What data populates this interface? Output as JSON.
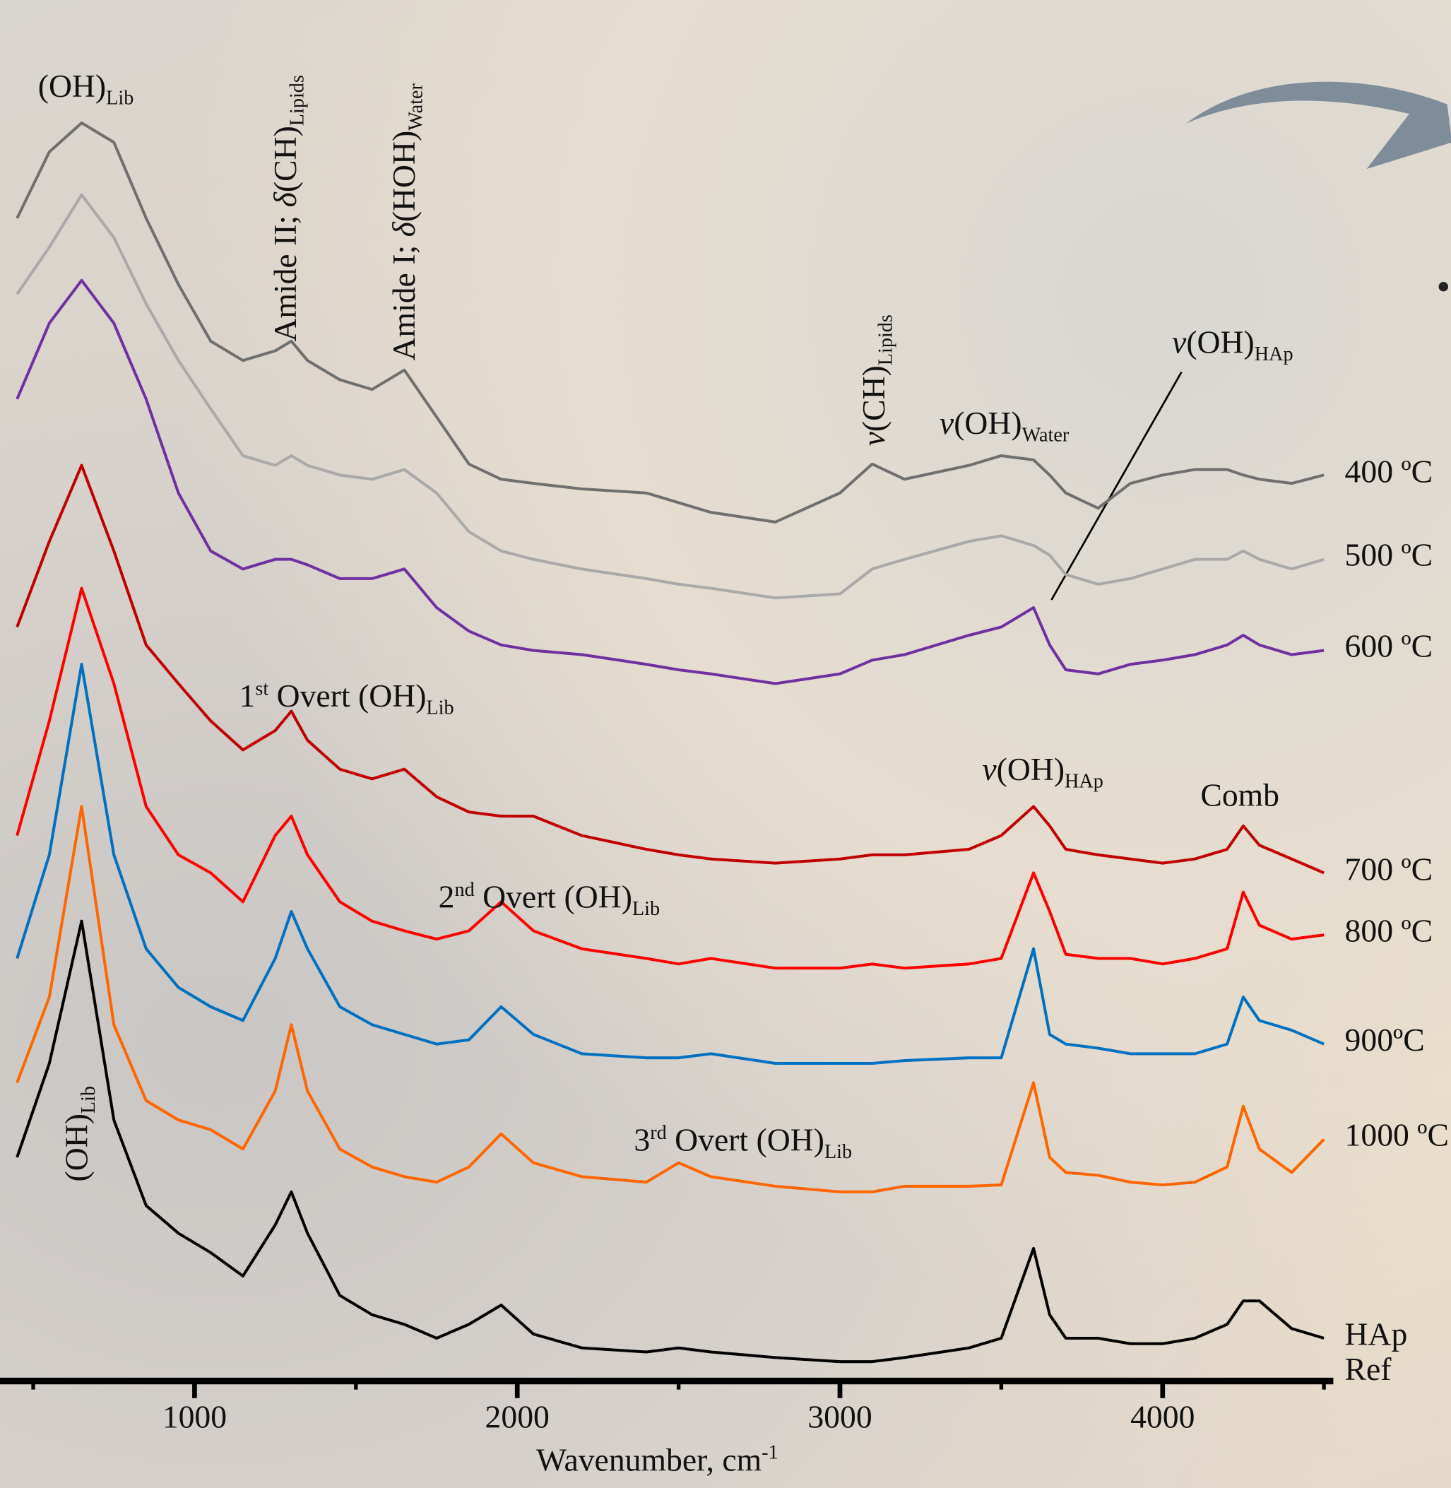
{
  "chart_data": {
    "type": "line",
    "xlabel": [
      {
        "text": "Wavenumber, cm"
      },
      {
        "text": "-1",
        "script": "sup"
      }
    ],
    "xlim": [
      397,
      4529
    ],
    "xticks": [
      1000,
      2000,
      3000,
      4000
    ],
    "xminorticks": [
      500,
      1500,
      2500,
      3500,
      4500
    ],
    "ylim": [
      0,
      100
    ],
    "x": [
      450,
      550,
      650,
      750,
      850,
      950,
      1050,
      1150,
      1250,
      1300,
      1350,
      1450,
      1550,
      1650,
      1750,
      1850,
      1950,
      2050,
      2200,
      2400,
      2500,
      2600,
      2800,
      3000,
      3100,
      3200,
      3400,
      3500,
      3600,
      3650,
      3700,
      3800,
      3900,
      4000,
      4100,
      4200,
      4250,
      4300,
      4400,
      4500
    ],
    "series": [
      {
        "name": "400 ºC",
        "color": "#6f6f6f",
        "values": [
          84.2,
          89.0,
          91.1,
          89.7,
          84.2,
          79.4,
          75.3,
          73.9,
          74.6,
          75.3,
          73.9,
          72.5,
          71.8,
          73.2,
          69.8,
          66.4,
          65.3,
          65.0,
          64.6,
          64.3,
          63.6,
          62.9,
          62.2,
          64.3,
          66.4,
          65.3,
          66.3,
          67.0,
          66.7,
          65.6,
          64.3,
          63.2,
          65.0,
          65.6,
          66.0,
          66.0,
          65.6,
          65.3,
          65.0,
          65.6
        ]
      },
      {
        "name": "500 ºC",
        "color": "#a9a9a9",
        "values": [
          78.7,
          82.1,
          85.9,
          82.8,
          78.0,
          73.9,
          70.4,
          67.0,
          66.3,
          67.0,
          66.3,
          65.6,
          65.3,
          66.0,
          64.3,
          61.5,
          60.1,
          59.5,
          58.8,
          58.1,
          57.7,
          57.4,
          56.7,
          57.0,
          58.8,
          59.5,
          60.8,
          61.2,
          60.5,
          59.8,
          58.4,
          57.7,
          58.1,
          58.8,
          59.5,
          59.5,
          60.1,
          59.5,
          58.8,
          59.5
        ]
      },
      {
        "name": "600 ºC",
        "color": "#7030a0",
        "values": [
          71.1,
          76.6,
          79.7,
          76.6,
          71.1,
          64.3,
          60.1,
          58.8,
          59.5,
          59.5,
          59.1,
          58.1,
          58.1,
          58.8,
          56.0,
          54.3,
          53.3,
          52.9,
          52.6,
          51.9,
          51.5,
          51.2,
          50.5,
          51.2,
          52.2,
          52.6,
          54.0,
          54.6,
          56.0,
          53.3,
          51.5,
          51.2,
          51.9,
          52.2,
          52.6,
          53.3,
          54.0,
          53.3,
          52.6,
          52.9
        ]
      },
      {
        "name": "700 ºC",
        "color": "#c00000",
        "values": [
          54.6,
          60.8,
          66.3,
          60.1,
          53.3,
          50.5,
          47.8,
          45.7,
          47.1,
          48.5,
          46.4,
          44.3,
          43.6,
          44.3,
          42.3,
          41.2,
          40.9,
          40.9,
          39.5,
          38.5,
          38.1,
          37.8,
          37.5,
          37.8,
          38.1,
          38.1,
          38.5,
          39.5,
          41.6,
          40.2,
          38.5,
          38.1,
          37.8,
          37.5,
          37.8,
          38.5,
          40.2,
          38.8,
          37.8,
          36.8
        ]
      },
      {
        "name": "800 ºC",
        "color": "#ff0000",
        "values": [
          39.5,
          47.8,
          57.4,
          50.5,
          41.6,
          38.1,
          36.8,
          34.7,
          39.5,
          40.9,
          38.1,
          34.7,
          33.3,
          32.6,
          32.0,
          32.6,
          34.7,
          32.6,
          31.3,
          30.6,
          30.2,
          30.6,
          29.9,
          29.9,
          30.2,
          29.9,
          30.2,
          30.6,
          36.8,
          34.0,
          30.9,
          30.6,
          30.6,
          30.2,
          30.6,
          31.3,
          35.4,
          33.0,
          32.0,
          32.3
        ]
      },
      {
        "name": "900ºC",
        "color": "#0070c0",
        "values": [
          30.6,
          38.1,
          51.9,
          38.1,
          31.3,
          28.5,
          27.1,
          26.1,
          30.6,
          34.0,
          31.3,
          27.1,
          25.8,
          25.1,
          24.4,
          24.7,
          27.1,
          25.1,
          23.7,
          23.4,
          23.4,
          23.7,
          23.0,
          23.0,
          23.0,
          23.2,
          23.4,
          23.4,
          31.3,
          25.1,
          24.4,
          24.1,
          23.7,
          23.7,
          23.7,
          24.4,
          27.8,
          26.1,
          25.4,
          24.4
        ]
      },
      {
        "name": "1000 ºC",
        "color": "#ff6600",
        "values": [
          21.6,
          27.8,
          41.6,
          25.8,
          20.3,
          18.9,
          18.2,
          16.8,
          21.0,
          25.8,
          21.0,
          16.8,
          15.5,
          14.8,
          14.4,
          15.5,
          17.9,
          15.8,
          14.8,
          14.4,
          15.8,
          14.8,
          14.1,
          13.7,
          13.7,
          14.1,
          14.1,
          14.2,
          21.6,
          16.2,
          15.1,
          14.9,
          14.4,
          14.2,
          14.4,
          15.5,
          19.9,
          16.8,
          15.1,
          17.5
        ]
      },
      {
        "name": "HAp Ref",
        "color": "#000000",
        "values": [
          16.2,
          23.0,
          33.3,
          18.9,
          12.7,
          10.7,
          9.3,
          7.6,
          11.3,
          13.7,
          10.7,
          6.2,
          4.8,
          4.1,
          3.1,
          4.1,
          5.5,
          3.4,
          2.4,
          2.1,
          2.4,
          2.1,
          1.7,
          1.4,
          1.4,
          1.7,
          2.4,
          3.1,
          9.6,
          4.8,
          3.1,
          3.1,
          2.7,
          2.7,
          3.1,
          4.1,
          5.8,
          5.8,
          3.8,
          3.1
        ]
      }
    ],
    "annotations": [
      {
        "parts": [
          {
            "text": "(OH)"
          },
          {
            "text": "Lib",
            "script": "sub"
          }
        ]
      },
      {
        "parts": [
          {
            "text": "Amide II; "
          },
          {
            "text": "δ",
            "style": "italic"
          },
          {
            "text": "(CH)"
          },
          {
            "text": "Lipids",
            "script": "sub"
          }
        ]
      },
      {
        "parts": [
          {
            "text": "Amide I; "
          },
          {
            "text": "δ",
            "style": "italic"
          },
          {
            "text": "(HOH)"
          },
          {
            "text": "Water",
            "script": "sub"
          }
        ]
      },
      {
        "parts": [
          {
            "text": "v",
            "style": "italic"
          },
          {
            "text": "(CH)"
          },
          {
            "text": "Lipids",
            "script": "sub"
          }
        ]
      },
      {
        "parts": [
          {
            "text": "v",
            "style": "italic"
          },
          {
            "text": "(OH)"
          },
          {
            "text": "Water",
            "script": "sub"
          }
        ]
      },
      {
        "parts": [
          {
            "text": "v",
            "style": "italic"
          },
          {
            "text": "(OH)"
          },
          {
            "text": "HAp",
            "script": "sub"
          }
        ]
      },
      {
        "parts": [
          {
            "text": "1"
          },
          {
            "text": "st",
            "script": "sup"
          },
          {
            "text": " Overt (OH)"
          },
          {
            "text": "Lib",
            "script": "sub"
          }
        ]
      },
      {
        "parts": [
          {
            "text": "v",
            "style": "italic"
          },
          {
            "text": "(OH)"
          },
          {
            "text": "HAp",
            "script": "sub"
          }
        ]
      },
      {
        "parts": [
          {
            "text": "Comb"
          }
        ]
      },
      {
        "parts": [
          {
            "text": "2"
          },
          {
            "text": "nd",
            "script": "sup"
          },
          {
            "text": " Overt (OH)"
          },
          {
            "text": "Lib",
            "script": "sub"
          }
        ]
      },
      {
        "parts": [
          {
            "text": "3"
          },
          {
            "text": "rd",
            "script": "sup"
          },
          {
            "text": " Overt (OH)"
          },
          {
            "text": "Lib",
            "script": "sub"
          }
        ]
      },
      {
        "parts": [
          {
            "text": "(OH)"
          },
          {
            "text": "Lib",
            "script": "sub"
          }
        ]
      }
    ]
  }
}
